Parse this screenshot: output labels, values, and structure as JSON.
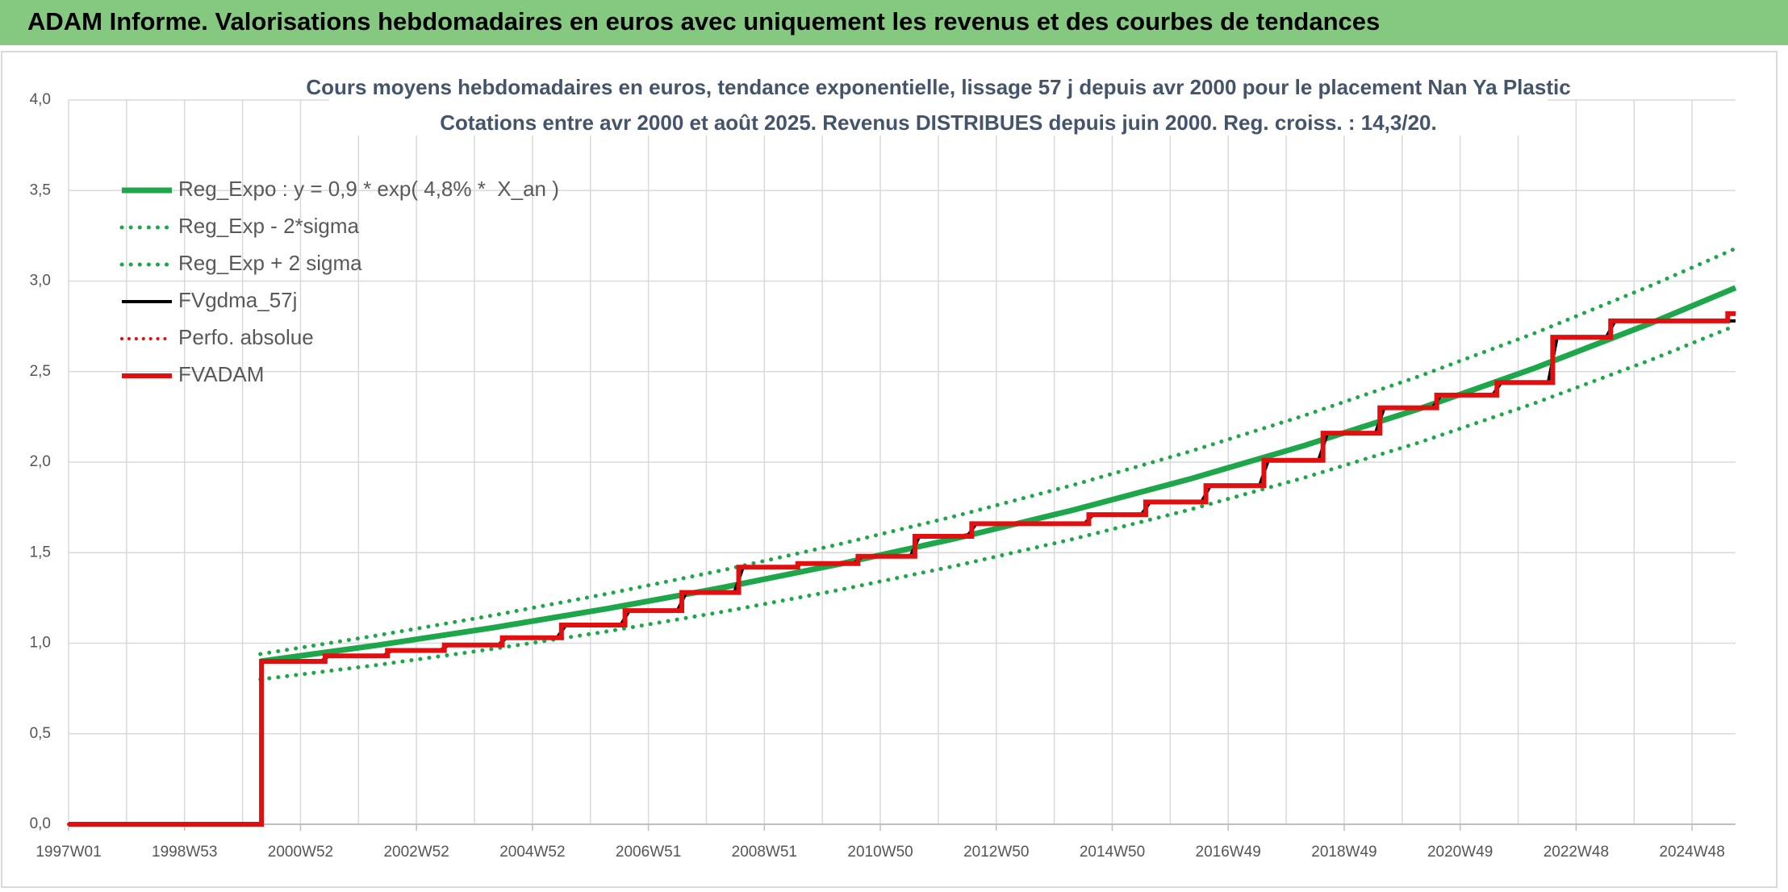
{
  "header": {
    "title": "ADAM Informe. Valorisations hebdomadaires en euros avec uniquement les revenus et des courbes de tendances"
  },
  "chart_data": {
    "type": "line",
    "title": "Cours moyens hebdomadaires en euros, tendance exponentielle, lissage 57 j depuis avr 2000 pour le placement Nan Ya Plastic",
    "subtitle": "Cotations entre avr 2000 et août 2025. Revenus DISTRIBUES depuis juin 2000. Reg. croiss. : 14,3/20.",
    "xlim": [
      0,
      1495
    ],
    "xticks": [
      {
        "value": 0,
        "label": "1997W01"
      },
      {
        "value": 104,
        "label": "1998W53"
      },
      {
        "value": 208,
        "label": "2000W52"
      },
      {
        "value": 312,
        "label": "2002W52"
      },
      {
        "value": 416,
        "label": "2004W52"
      },
      {
        "value": 520,
        "label": "2006W51"
      },
      {
        "value": 624,
        "label": "2008W51"
      },
      {
        "value": 728,
        "label": "2010W50"
      },
      {
        "value": 832,
        "label": "2012W50"
      },
      {
        "value": 936,
        "label": "2014W50"
      },
      {
        "value": 1040,
        "label": "2016W49"
      },
      {
        "value": 1144,
        "label": "2018W49"
      },
      {
        "value": 1248,
        "label": "2020W49"
      },
      {
        "value": 1352,
        "label": "2022W48"
      },
      {
        "value": 1456,
        "label": "2024W48"
      }
    ],
    "x_minor_ticks": [
      52,
      156,
      260,
      364,
      468,
      572,
      676,
      780,
      884,
      988,
      1092,
      1196,
      1300,
      1404
    ],
    "ylim": [
      0,
      4
    ],
    "yticks": [
      {
        "value": 0,
        "label": "0,0"
      },
      {
        "value": 0.5,
        "label": "0,5"
      },
      {
        "value": 1,
        "label": "1,0"
      },
      {
        "value": 1.5,
        "label": "1,5"
      },
      {
        "value": 2,
        "label": "2,0"
      },
      {
        "value": 2.5,
        "label": "2,5"
      },
      {
        "value": 3,
        "label": "3,0"
      },
      {
        "value": 3.5,
        "label": "3,5"
      },
      {
        "value": 4,
        "label": "4,0"
      }
    ],
    "grid": true,
    "legend": "top-left",
    "series": [
      {
        "name": "Reg_Expo : y = 0,9 * exp( 4,8% *  X_an )",
        "color": "#1ea64a",
        "style": "solid",
        "width": 7,
        "x": [
          172,
          276,
          380,
          484,
          588,
          692,
          796,
          900,
          1004,
          1108,
          1212,
          1316,
          1420,
          1495
        ],
        "values": [
          0.9,
          0.988,
          1.085,
          1.192,
          1.309,
          1.438,
          1.579,
          1.734,
          1.904,
          2.091,
          2.296,
          2.522,
          2.77,
          2.963
        ]
      },
      {
        "name": "Reg_Exp - 2*sigma",
        "color": "#1ea64a",
        "style": "dotted",
        "width": 5,
        "x": [
          172,
          276,
          380,
          484,
          588,
          692,
          796,
          900,
          1004,
          1108,
          1212,
          1316,
          1420,
          1495
        ],
        "values": [
          0.8,
          0.879,
          0.968,
          1.066,
          1.175,
          1.295,
          1.428,
          1.574,
          1.735,
          1.914,
          2.11,
          2.328,
          2.567,
          2.754
        ]
      },
      {
        "name": "Reg_Exp + 2 sigma",
        "color": "#1ea64a",
        "style": "dotted",
        "width": 5,
        "x": [
          172,
          276,
          380,
          484,
          588,
          692,
          796,
          900,
          1004,
          1108,
          1212,
          1316,
          1420,
          1495
        ],
        "values": [
          0.94,
          1.042,
          1.153,
          1.274,
          1.405,
          1.548,
          1.703,
          1.872,
          2.056,
          2.257,
          2.476,
          2.715,
          2.977,
          3.18
        ]
      },
      {
        "name": "FVgdma_57j",
        "color": "#000000",
        "style": "solid",
        "width": 4,
        "x": [
          173,
          226,
          234,
          282,
          290,
          333,
          341,
          385,
          393,
          438,
          446,
          495,
          503,
          546,
          554,
          597,
          605,
          650,
          658,
          704,
          712,
          755,
          763,
          806,
          814,
          911,
          919,
          962,
          970,
          1016,
          1024,
          1068,
          1076,
          1121,
          1129,
          1172,
          1180,
          1223,
          1231,
          1277,
          1285,
          1327,
          1335,
          1379,
          1387,
          1495
        ],
        "values": [
          0.9,
          0.9,
          0.93,
          0.93,
          0.96,
          0.96,
          0.99,
          0.99,
          1.03,
          1.03,
          1.1,
          1.1,
          1.18,
          1.18,
          1.28,
          1.28,
          1.42,
          1.42,
          1.44,
          1.44,
          1.48,
          1.48,
          1.59,
          1.59,
          1.66,
          1.66,
          1.71,
          1.71,
          1.78,
          1.78,
          1.87,
          1.87,
          2.01,
          2.01,
          2.16,
          2.16,
          2.3,
          2.3,
          2.37,
          2.37,
          2.44,
          2.44,
          2.69,
          2.69,
          2.78,
          2.78
        ]
      },
      {
        "name": "Perfo. absolue",
        "color": "#e01010",
        "style": "dotted",
        "width": 4,
        "x": [
          0,
          173,
          173,
          230,
          230,
          286,
          286,
          337,
          337,
          389,
          389,
          442,
          442,
          499,
          499,
          550,
          550,
          601,
          601,
          654,
          654,
          708,
          708,
          759,
          759,
          810,
          810,
          915,
          915,
          966,
          966,
          1020,
          1020,
          1072,
          1072,
          1125,
          1125,
          1176,
          1176,
          1227,
          1227,
          1281,
          1281,
          1331,
          1331,
          1383,
          1383,
          1488,
          1488,
          1495
        ],
        "values": [
          0,
          0,
          0.9,
          0.9,
          0.93,
          0.93,
          0.96,
          0.96,
          0.99,
          0.99,
          1.03,
          1.03,
          1.1,
          1.1,
          1.18,
          1.18,
          1.28,
          1.28,
          1.42,
          1.42,
          1.44,
          1.44,
          1.48,
          1.48,
          1.59,
          1.59,
          1.66,
          1.66,
          1.71,
          1.71,
          1.78,
          1.78,
          1.87,
          1.87,
          2.01,
          2.01,
          2.16,
          2.16,
          2.3,
          2.3,
          2.37,
          2.37,
          2.44,
          2.44,
          2.69,
          2.69,
          2.78,
          2.78,
          2.82,
          2.82
        ]
      },
      {
        "name": "FVADAM",
        "color": "#e01010",
        "style": "solid",
        "width": 6,
        "x": [
          0,
          173,
          173,
          230,
          230,
          286,
          286,
          337,
          337,
          389,
          389,
          442,
          442,
          499,
          499,
          550,
          550,
          601,
          601,
          654,
          654,
          708,
          708,
          759,
          759,
          810,
          810,
          915,
          915,
          966,
          966,
          1020,
          1020,
          1072,
          1072,
          1125,
          1125,
          1176,
          1176,
          1227,
          1227,
          1281,
          1281,
          1331,
          1331,
          1383,
          1383,
          1488,
          1488,
          1495
        ],
        "values": [
          0,
          0,
          0.9,
          0.9,
          0.93,
          0.93,
          0.96,
          0.96,
          0.99,
          0.99,
          1.03,
          1.03,
          1.1,
          1.1,
          1.18,
          1.18,
          1.28,
          1.28,
          1.42,
          1.42,
          1.44,
          1.44,
          1.48,
          1.48,
          1.59,
          1.59,
          1.66,
          1.66,
          1.71,
          1.71,
          1.78,
          1.78,
          1.87,
          1.87,
          2.01,
          2.01,
          2.16,
          2.16,
          2.3,
          2.3,
          2.37,
          2.37,
          2.44,
          2.44,
          2.69,
          2.69,
          2.78,
          2.78,
          2.82,
          2.82
        ]
      }
    ]
  }
}
